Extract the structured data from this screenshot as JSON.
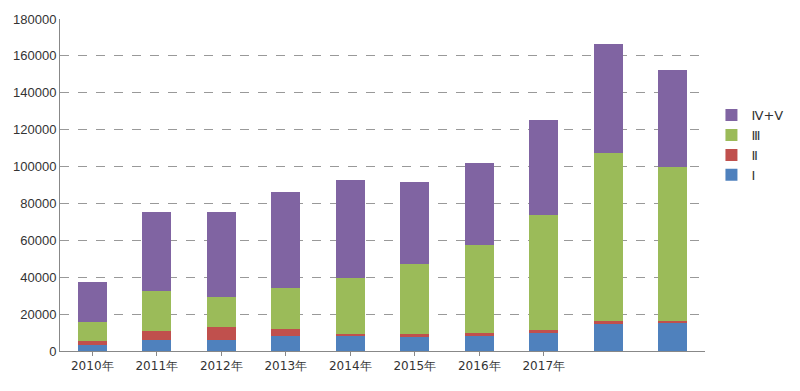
{
  "chart_data": {
    "type": "bar",
    "stacked": true,
    "categories": [
      "2010年",
      "2011年",
      "2012年",
      "2013年",
      "2014年",
      "2015年",
      "2016年",
      "2017年",
      null,
      null
    ],
    "series": [
      {
        "name": "Ⅰ",
        "color": "#4f81bd",
        "values": [
          3500,
          6000,
          6000,
          8000,
          8500,
          8000,
          8500,
          9500,
          15000,
          15500
        ]
      },
      {
        "name": "Ⅱ",
        "color": "#c0504d",
        "values": [
          2000,
          5000,
          7000,
          4000,
          500,
          1000,
          1000,
          2000,
          1000,
          1000
        ]
      },
      {
        "name": "Ⅲ",
        "color": "#9bbb59",
        "values": [
          10000,
          21500,
          16500,
          22000,
          30500,
          38000,
          48000,
          62500,
          91500,
          83000
        ]
      },
      {
        "name": "Ⅳ+Ⅴ",
        "color": "#8064a2",
        "values": [
          22000,
          43000,
          46000,
          52000,
          53000,
          44500,
          44500,
          51500,
          59000,
          53000
        ]
      }
    ],
    "ylim": [
      0,
      180000
    ],
    "yticks": [
      0,
      20000,
      40000,
      60000,
      80000,
      100000,
      120000,
      140000,
      160000,
      180000
    ],
    "grid": true,
    "legend": "right"
  }
}
